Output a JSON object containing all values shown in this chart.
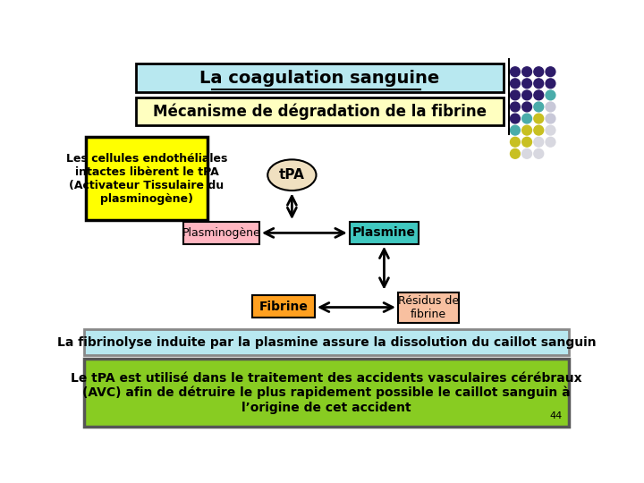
{
  "title": "La coagulation sanguine",
  "subtitle": "Mécanisme de dégradation de la fibrine",
  "title_bg": "#b8e8f0",
  "subtitle_bg": "#ffffc0",
  "box_left_text": "Les cellules endothéliales\nintactes libèrent le tPA\n(Activateur Tissulaire du\nplasminogène)",
  "box_left_bg": "#ffff00",
  "tpa_label": "tPA",
  "tpa_bg": "#f0e0c0",
  "plasminogene_label": "Plasminogène",
  "plasminogene_bg": "#ffb6c1",
  "plasmine_label": "Plasmine",
  "plasmine_bg": "#40c8c0",
  "fibrine_label": "Fibrine",
  "fibrine_bg": "#ffa020",
  "residus_label": "Résidus de\nfibrine",
  "residus_bg": "#f8c0a0",
  "bottom_text1": "La fibrinolyse induite par la plasmine assure la dissolution du caillot sanguin",
  "bottom_text1_bg": "#b8e8f0",
  "bottom_text2": "Le tPA est utilisé dans le traitement des accidents vasculaires cérébraux\n(AVC) afin de détruire le plus rapidement possible le caillot sanguin à\nl’origine de cet accident",
  "bottom_text2_bg": "#88cc22",
  "page_num": "44",
  "dot_rows": [
    [
      "#2d1b69",
      "#2d1b69",
      "#2d1b69",
      "#2d1b69"
    ],
    [
      "#2d1b69",
      "#2d1b69",
      "#2d1b69",
      "#2d1b69"
    ],
    [
      "#2d1b69",
      "#2d1b69",
      "#2d1b69",
      "#4aacaa"
    ],
    [
      "#2d1b69",
      "#2d1b69",
      "#4aacaa",
      "#c8c8d8"
    ],
    [
      "#2d1b69",
      "#4aacaa",
      "#c8c022",
      "#c8c8d8"
    ],
    [
      "#4aacaa",
      "#c8c022",
      "#c8c022",
      "#d8d8e0"
    ],
    [
      "#c8c022",
      "#c8c022",
      "#d8d8e0",
      "#d8d8e0"
    ],
    [
      "#c8c022",
      "#d8d8e0",
      "#d8d8e0",
      ""
    ]
  ]
}
